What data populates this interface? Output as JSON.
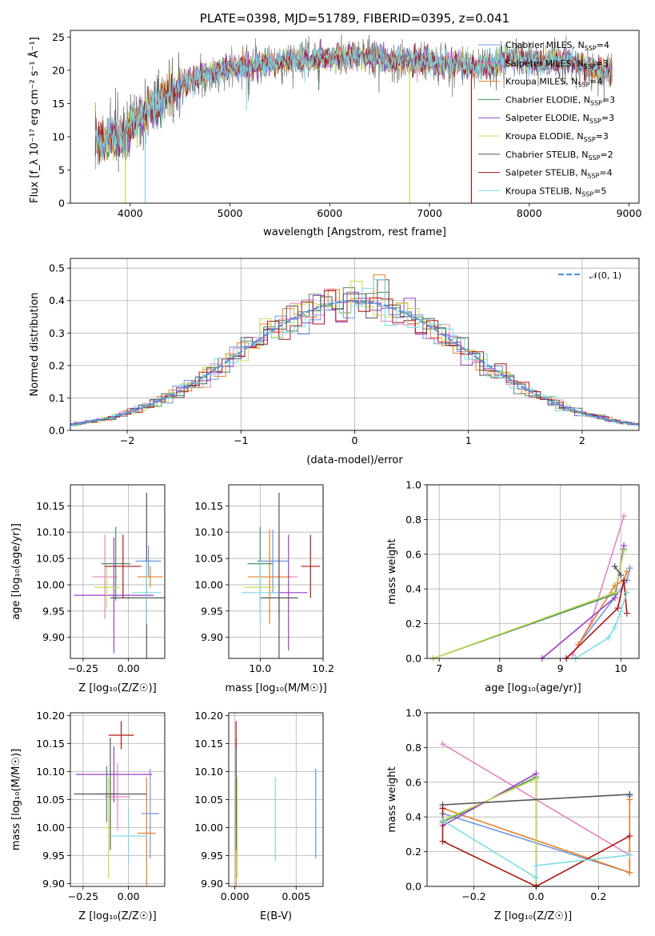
{
  "colors": {
    "ch_miles": "#6d96dd",
    "sa_miles": "#e585c2",
    "kr_miles": "#e6812b",
    "ch_elodie": "#4e8b62",
    "sa_elodie": "#9a3fc5",
    "kr_elodie": "#c3dd58",
    "ch_stelib": "#555555",
    "sa_stelib": "#aa1818",
    "kr_stelib": "#7fdbe2",
    "normal": "#5b92dd",
    "grid": "#b0b0b0"
  },
  "chart_data": [
    {
      "id": "spectrum",
      "type": "line",
      "title": "PLATE=0398, MJD=51789, FIBERID=0395, z=0.041",
      "xlabel": "wavelength [Angstrom, rest frame]",
      "ylabel": "Flux [f_λ 10⁻¹⁷ erg cm⁻² s⁻¹ Å⁻¹]",
      "xlim": [
        3400,
        9100
      ],
      "ylim": [
        0,
        26
      ],
      "xticks": [
        "4000",
        "5000",
        "6000",
        "7000",
        "8000",
        "9000"
      ],
      "yticks": [
        "0",
        "5",
        "10",
        "15",
        "20",
        "25"
      ],
      "grid": false,
      "legend_position": "right",
      "legend": [
        {
          "main": "Chabrier MILES, N",
          "sub": "SSP",
          "tail": "=4"
        },
        {
          "main": "Salpeter MILES, N",
          "sub": "SSP",
          "tail": "=3"
        },
        {
          "main": "Kroupa MILES, N",
          "sub": "SSP",
          "tail": "=4"
        },
        {
          "main": "Chabrier ELODIE, N",
          "sub": "SSP",
          "tail": "=3"
        },
        {
          "main": "Salpeter ELODIE, N",
          "sub": "SSP",
          "tail": "=3"
        },
        {
          "main": "Kroupa ELODIE, N",
          "sub": "SSP",
          "tail": "=3"
        },
        {
          "main": "Chabrier STELIB, N",
          "sub": "SSP",
          "tail": "=2"
        },
        {
          "main": "Salpeter STELIB, N",
          "sub": "SSP",
          "tail": "=4"
        },
        {
          "main": "Kroupa STELIB, N",
          "sub": "SSP",
          "tail": "=5"
        }
      ],
      "continuum": {
        "x": [
          3650,
          3700,
          3800,
          3900,
          4000,
          4100,
          4200,
          4300,
          4400,
          4500,
          4600,
          4700,
          4800,
          4900,
          5000,
          5200,
          5400,
          5600,
          5800,
          6000,
          6200,
          6400,
          6600,
          6800,
          7000,
          7200,
          7400,
          7600,
          7800,
          8000,
          8200,
          8400,
          8600,
          8800
        ],
        "y": [
          10,
          8.5,
          10,
          9.5,
          11,
          13,
          14.5,
          15,
          16.5,
          17.5,
          18.5,
          19,
          19.5,
          20,
          20.5,
          20.5,
          21,
          21.5,
          21.5,
          22,
          22,
          22,
          21.5,
          21.5,
          21.5,
          21,
          20.5,
          20.5,
          22,
          21.5,
          21,
          21.5,
          20.5,
          19.5
        ]
      },
      "spikes": [
        {
          "x": 3950,
          "y0": 8,
          "y1": 0
        },
        {
          "x": 4150,
          "y0": 11,
          "y1": 0
        },
        {
          "x": 6800,
          "y0": 21,
          "y1": 0
        },
        {
          "x": 7420,
          "y0": 20,
          "y1": 0
        },
        {
          "x": 5165,
          "y0": 19,
          "y1": 14
        },
        {
          "x": 5890,
          "y0": 20,
          "y1": 17
        }
      ]
    },
    {
      "id": "residuals",
      "type": "area",
      "xlabel": "(data-model)/error",
      "ylabel": "Normed distribution",
      "xlim": [
        -2.5,
        2.5
      ],
      "ylim": [
        0,
        0.53
      ],
      "xticks": [
        "−2",
        "−1",
        "0",
        "1",
        "2"
      ],
      "yticks": [
        "0.0",
        "0.1",
        "0.2",
        "0.3",
        "0.4",
        "0.5"
      ],
      "grid": true,
      "legend_position": "top-right",
      "legend": "𝒩(0, 1)",
      "bin_width": 0.1
    },
    {
      "id": "age_vs_Z",
      "type": "scatter",
      "xlabel": "Z [log₁₀(Z/Z☉)]",
      "ylabel": "age  [log₁₀(age/yr)]",
      "xlim": [
        -0.32,
        0.2
      ],
      "ylim": [
        9.86,
        10.19
      ],
      "xticks": [
        "−0.25",
        "0.00"
      ],
      "yticks": [
        "9.90",
        "9.95",
        "10.00",
        "10.05",
        "10.10",
        "10.15"
      ],
      "points": [
        {
          "c": "ch_miles",
          "x": 0.11,
          "y": 10.045,
          "xe": 0.07,
          "ye": 0.03
        },
        {
          "c": "sa_miles",
          "x": -0.13,
          "y": 10.015,
          "xe": 0.07,
          "ye": 0.08
        },
        {
          "c": "kr_miles",
          "x": 0.12,
          "y": 10.015,
          "xe": 0.07,
          "ye": 0.02
        },
        {
          "c": "ch_elodie",
          "x": -0.07,
          "y": 10.04,
          "xe": 0.08,
          "ye": 0.07
        },
        {
          "c": "sa_elodie",
          "x": -0.08,
          "y": 9.98,
          "xe": 0.22,
          "ye": 0.11
        },
        {
          "c": "kr_elodie",
          "x": -0.12,
          "y": 9.995,
          "xe": 0.07,
          "ye": 0.04
        },
        {
          "c": "ch_stelib",
          "x": 0.1,
          "y": 9.975,
          "xe": 0.2,
          "ye": 0.2
        },
        {
          "c": "sa_stelib",
          "x": -0.03,
          "y": 10.035,
          "xe": 0.1,
          "ye": 0.06
        },
        {
          "c": "kr_stelib",
          "x": 0.1,
          "y": 9.985,
          "xe": 0.08,
          "ye": 0.06
        }
      ]
    },
    {
      "id": "age_vs_mass",
      "type": "scatter",
      "xlabel": "mass [log₁₀(M/M☉)]",
      "ylabel": "",
      "xlim": [
        9.9,
        10.2
      ],
      "ylim": [
        9.86,
        10.19
      ],
      "xticks": [
        "10.0",
        "10.2"
      ],
      "yticks": [
        "9.90",
        "9.95",
        "10.00",
        "10.05",
        "10.10",
        "10.15"
      ],
      "points": [
        {
          "c": "ch_miles",
          "x": 10.04,
          "y": 10.045,
          "xe": 0.05,
          "ye": 0.06
        },
        {
          "c": "sa_miles",
          "x": 10.06,
          "y": 10.015,
          "xe": 0.06,
          "ye": 0.08
        },
        {
          "c": "kr_miles",
          "x": 10.03,
          "y": 10.015,
          "xe": 0.07,
          "ye": 0.09
        },
        {
          "c": "ch_elodie",
          "x": 10.0,
          "y": 10.04,
          "xe": 0.04,
          "ye": 0.07
        },
        {
          "c": "sa_elodie",
          "x": 10.09,
          "y": 9.985,
          "xe": 0.06,
          "ye": 0.11
        },
        {
          "c": "kr_elodie",
          "x": 10.0,
          "y": 9.995,
          "xe": 0.05,
          "ye": 0.04
        },
        {
          "c": "ch_stelib",
          "x": 10.06,
          "y": 9.975,
          "xe": 0.06,
          "ye": 0.2
        },
        {
          "c": "sa_stelib",
          "x": 10.16,
          "y": 10.035,
          "xe": 0.03,
          "ye": 0.06
        },
        {
          "c": "kr_stelib",
          "x": 10.0,
          "y": 9.985,
          "xe": 0.06,
          "ye": 0.06
        }
      ]
    },
    {
      "id": "mass_weight_vs_age",
      "type": "line",
      "xlabel": "age  [log₁₀(age/yr)]",
      "ylabel": "mass weight",
      "xlim": [
        6.8,
        10.3
      ],
      "ylim": [
        0,
        1.0
      ],
      "xticks": [
        "7",
        "8",
        "9",
        "10"
      ],
      "yticks": [
        "0.0",
        "0.2",
        "0.4",
        "0.6",
        "0.8",
        "1.0"
      ],
      "series": [
        {
          "c": "ch_miles",
          "x": [
            9.3,
            9.9,
            10.1,
            10.15
          ],
          "y": [
            0.08,
            0.35,
            0.45,
            0.52
          ]
        },
        {
          "c": "sa_miles",
          "x": [
            9.2,
            9.5,
            10.05
          ],
          "y": [
            0.02,
            0.2,
            0.82
          ]
        },
        {
          "c": "kr_miles",
          "x": [
            9.3,
            9.9,
            10.05,
            10.1
          ],
          "y": [
            0.08,
            0.42,
            0.45,
            0.5
          ]
        },
        {
          "c": "ch_elodie",
          "x": [
            6.9,
            9.9,
            10.05
          ],
          "y": [
            0.0,
            0.37,
            0.63
          ]
        },
        {
          "c": "sa_elodie",
          "x": [
            8.7,
            9.9,
            10.05
          ],
          "y": [
            0.0,
            0.35,
            0.65
          ]
        },
        {
          "c": "kr_elodie",
          "x": [
            6.9,
            9.9,
            10.05
          ],
          "y": [
            0.0,
            0.38,
            0.62
          ]
        },
        {
          "c": "ch_stelib",
          "x": [
            9.9,
            10.0
          ],
          "y": [
            0.53,
            0.48
          ]
        },
        {
          "c": "sa_stelib",
          "x": [
            9.1,
            9.95,
            10.05,
            10.1
          ],
          "y": [
            0.0,
            0.29,
            0.45,
            0.26
          ]
        },
        {
          "c": "kr_stelib",
          "x": [
            9.25,
            9.8,
            9.9,
            10.0,
            10.1
          ],
          "y": [
            0.0,
            0.12,
            0.18,
            0.27,
            0.38
          ]
        }
      ]
    },
    {
      "id": "mass_vs_Z",
      "type": "scatter",
      "xlabel": "Z [log₁₀(Z/Z☉)]",
      "ylabel": "mass [log₁₀(M/M☉)]",
      "xlim": [
        -0.32,
        0.2
      ],
      "ylim": [
        9.895,
        10.205
      ],
      "xticks": [
        "−0.25",
        "0.00"
      ],
      "yticks": [
        "9.90",
        "9.95",
        "10.00",
        "10.05",
        "10.10",
        "10.15",
        "10.20"
      ],
      "points": [
        {
          "c": "ch_miles",
          "x": 0.12,
          "y": 10.025,
          "xe": 0.05,
          "ye": 0.08
        },
        {
          "c": "sa_miles",
          "x": -0.06,
          "y": 10.055,
          "xe": 0.07,
          "ye": 0.06
        },
        {
          "c": "kr_miles",
          "x": 0.1,
          "y": 9.99,
          "xe": 0.05,
          "ye": 0.1
        },
        {
          "c": "ch_elodie",
          "x": -0.12,
          "y": 10.06,
          "xe": 0.05,
          "ye": 0.05
        },
        {
          "c": "sa_elodie",
          "x": -0.08,
          "y": 10.095,
          "xe": 0.21,
          "ye": 0.05
        },
        {
          "c": "kr_elodie",
          "x": -0.11,
          "y": 10.0,
          "xe": 0.03,
          "ye": 0.09
        },
        {
          "c": "ch_stelib",
          "x": -0.1,
          "y": 10.06,
          "xe": 0.2,
          "ye": 0.1
        },
        {
          "c": "sa_stelib",
          "x": -0.04,
          "y": 10.165,
          "xe": 0.07,
          "ye": 0.025
        },
        {
          "c": "kr_stelib",
          "x": 0.0,
          "y": 9.985,
          "xe": 0.1,
          "ye": 0.05
        }
      ]
    },
    {
      "id": "mass_vs_ebv",
      "type": "scatter",
      "xlabel": "E(B-V)",
      "ylabel": "",
      "xlim": [
        -0.0005,
        0.0072
      ],
      "ylim": [
        9.895,
        10.205
      ],
      "xticks": [
        "0.000",
        "0.005"
      ],
      "yticks": [
        "9.90",
        "9.95",
        "10.00",
        "10.05",
        "10.10",
        "10.15",
        "10.20"
      ],
      "points": [
        {
          "c": "ch_miles",
          "x": 0.0066,
          "y": 10.025,
          "xe": 0,
          "ye": 0.08
        },
        {
          "c": "sa_miles",
          "x": 0.0001,
          "y": 10.055,
          "xe": 0,
          "ye": 0.06
        },
        {
          "c": "kr_miles",
          "x": 0.0001,
          "y": 9.99,
          "xe": 0,
          "ye": 0.1
        },
        {
          "c": "ch_elodie",
          "x": 0.0001,
          "y": 10.06,
          "xe": 0,
          "ye": 0.05
        },
        {
          "c": "sa_elodie",
          "x": 0.0001,
          "y": 10.095,
          "xe": 0,
          "ye": 0.05
        },
        {
          "c": "kr_elodie",
          "x": 0.0002,
          "y": 10.0,
          "xe": 0,
          "ye": 0.09
        },
        {
          "c": "ch_stelib",
          "x": 0.0001,
          "y": 10.06,
          "xe": 0,
          "ye": 0.1
        },
        {
          "c": "sa_stelib",
          "x": 0.0001,
          "y": 10.165,
          "xe": 0,
          "ye": 0.025
        },
        {
          "c": "kr_stelib",
          "x": 0.0033,
          "y": 10.015,
          "xe": 0,
          "ye": 0.075
        }
      ]
    },
    {
      "id": "mass_weight_vs_Z",
      "type": "line",
      "xlabel": "Z [log₁₀(Z/Z☉)]",
      "ylabel": "mass weight",
      "xlim": [
        -0.35,
        0.33
      ],
      "ylim": [
        0,
        1.0
      ],
      "xticks": [
        "−0.2",
        "0.0",
        "0.2"
      ],
      "yticks": [
        "0.0",
        "0.2",
        "0.4",
        "0.6",
        "0.8",
        "1.0"
      ],
      "series": [
        {
          "c": "ch_miles",
          "x": [
            -0.3,
            0.3,
            0.3
          ],
          "y": [
            0.42,
            0.08,
            0.52
          ]
        },
        {
          "c": "sa_miles",
          "x": [
            -0.3,
            0.3
          ],
          "y": [
            0.82,
            0.18
          ]
        },
        {
          "c": "kr_miles",
          "x": [
            -0.3,
            0.3,
            0.3
          ],
          "y": [
            0.45,
            0.08,
            0.5
          ]
        },
        {
          "c": "ch_elodie",
          "x": [
            -0.3,
            0.0,
            0.0
          ],
          "y": [
            0.37,
            0.63,
            0.0
          ]
        },
        {
          "c": "sa_elodie",
          "x": [
            -0.3,
            0.0,
            0.0
          ],
          "y": [
            0.35,
            0.65,
            0.0
          ]
        },
        {
          "c": "kr_elodie",
          "x": [
            -0.3,
            0.0,
            0.0
          ],
          "y": [
            0.38,
            0.62,
            0.0
          ]
        },
        {
          "c": "ch_stelib",
          "x": [
            -0.3,
            0.3
          ],
          "y": [
            0.47,
            0.53
          ]
        },
        {
          "c": "sa_stelib",
          "x": [
            -0.3,
            -0.3,
            0.0,
            0.3
          ],
          "y": [
            0.45,
            0.26,
            0.0,
            0.29
          ]
        },
        {
          "c": "kr_stelib",
          "x": [
            -0.3,
            0.0,
            0.0,
            0.3
          ],
          "y": [
            0.38,
            0.05,
            0.12,
            0.18
          ]
        }
      ]
    }
  ]
}
